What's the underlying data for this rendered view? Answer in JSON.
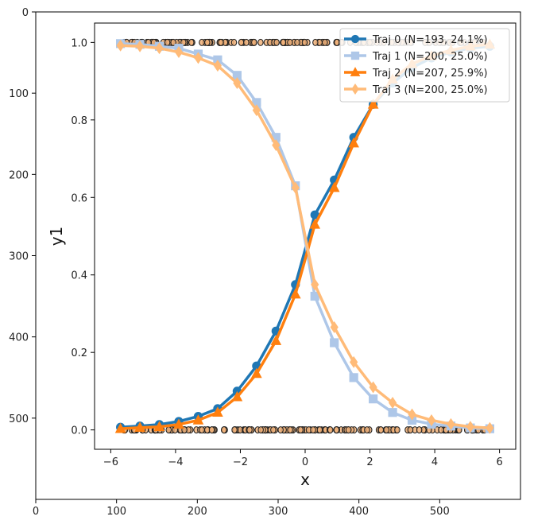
{
  "chart_data": [
    {
      "type": "scale",
      "xlabel": "",
      "ylabel": "",
      "xlim": [
        0,
        600
      ],
      "ylim": [
        600,
        0
      ],
      "xticks": [
        0,
        100,
        200,
        300,
        400,
        500
      ],
      "yticks": [
        0,
        100,
        200,
        300,
        400,
        500
      ]
    },
    {
      "type": "line",
      "xlabel": "x",
      "ylabel": "y1",
      "xlim": [
        -6.5,
        6.5
      ],
      "ylim": [
        -0.05,
        1.05
      ],
      "xticks": [
        -6,
        -4,
        -2,
        0,
        2,
        4,
        6
      ],
      "xtick_labels": [
        "−6",
        "−4",
        "−2",
        "0",
        "2",
        "4",
        "6"
      ],
      "yticks": [
        0.0,
        0.2,
        0.4,
        0.6,
        0.8,
        1.0
      ],
      "ytick_labels": [
        "0.0",
        "0.2",
        "0.4",
        "0.6",
        "0.8",
        "1.0"
      ],
      "legend_position": "top-right",
      "grid": false,
      "x": [
        -5.7,
        -5.1,
        -4.5,
        -3.9,
        -3.3,
        -2.7,
        -2.1,
        -1.5,
        -0.9,
        -0.3,
        0.3,
        0.9,
        1.5,
        2.1,
        2.7,
        3.3,
        3.9,
        4.5,
        5.1,
        5.7
      ],
      "series": [
        {
          "name": "Traj 0 (N=193, 24.1%)",
          "color": "#1f77b4",
          "marker": "circle",
          "values": [
            0.007,
            0.01,
            0.014,
            0.022,
            0.035,
            0.055,
            0.1,
            0.165,
            0.255,
            0.375,
            0.555,
            0.645,
            0.755,
            0.84,
            0.895,
            0.935,
            0.96,
            0.975,
            0.985,
            0.99
          ]
        },
        {
          "name": "Traj 1 (N=200, 25.0%)",
          "color": "#aec7e8",
          "marker": "square",
          "values": [
            0.997,
            0.995,
            0.99,
            0.985,
            0.97,
            0.955,
            0.915,
            0.845,
            0.755,
            0.63,
            0.345,
            0.225,
            0.135,
            0.08,
            0.045,
            0.025,
            0.015,
            0.01,
            0.005,
            0.003
          ]
        },
        {
          "name": "Traj 2 (N=207, 25.9%)",
          "color": "#ff7f0e",
          "marker": "triangle",
          "values": [
            0.003,
            0.006,
            0.008,
            0.014,
            0.025,
            0.045,
            0.085,
            0.145,
            0.23,
            0.35,
            0.53,
            0.625,
            0.74,
            0.84,
            0.905,
            0.945,
            0.965,
            0.98,
            0.99,
            0.995
          ]
        },
        {
          "name": "Traj 3 (N=200, 25.0%)",
          "color": "#ffbb78",
          "marker": "diamond",
          "values": [
            0.992,
            0.99,
            0.985,
            0.975,
            0.96,
            0.94,
            0.895,
            0.825,
            0.735,
            0.625,
            0.375,
            0.265,
            0.175,
            0.11,
            0.07,
            0.04,
            0.025,
            0.015,
            0.008,
            0.005
          ]
        }
      ],
      "data_points": {
        "color": "#f0b27a",
        "edge_color": "#222222",
        "top_y": 1.0,
        "bottom_y": 0.0,
        "x_range": [
          -5.6,
          5.6
        ]
      }
    }
  ]
}
